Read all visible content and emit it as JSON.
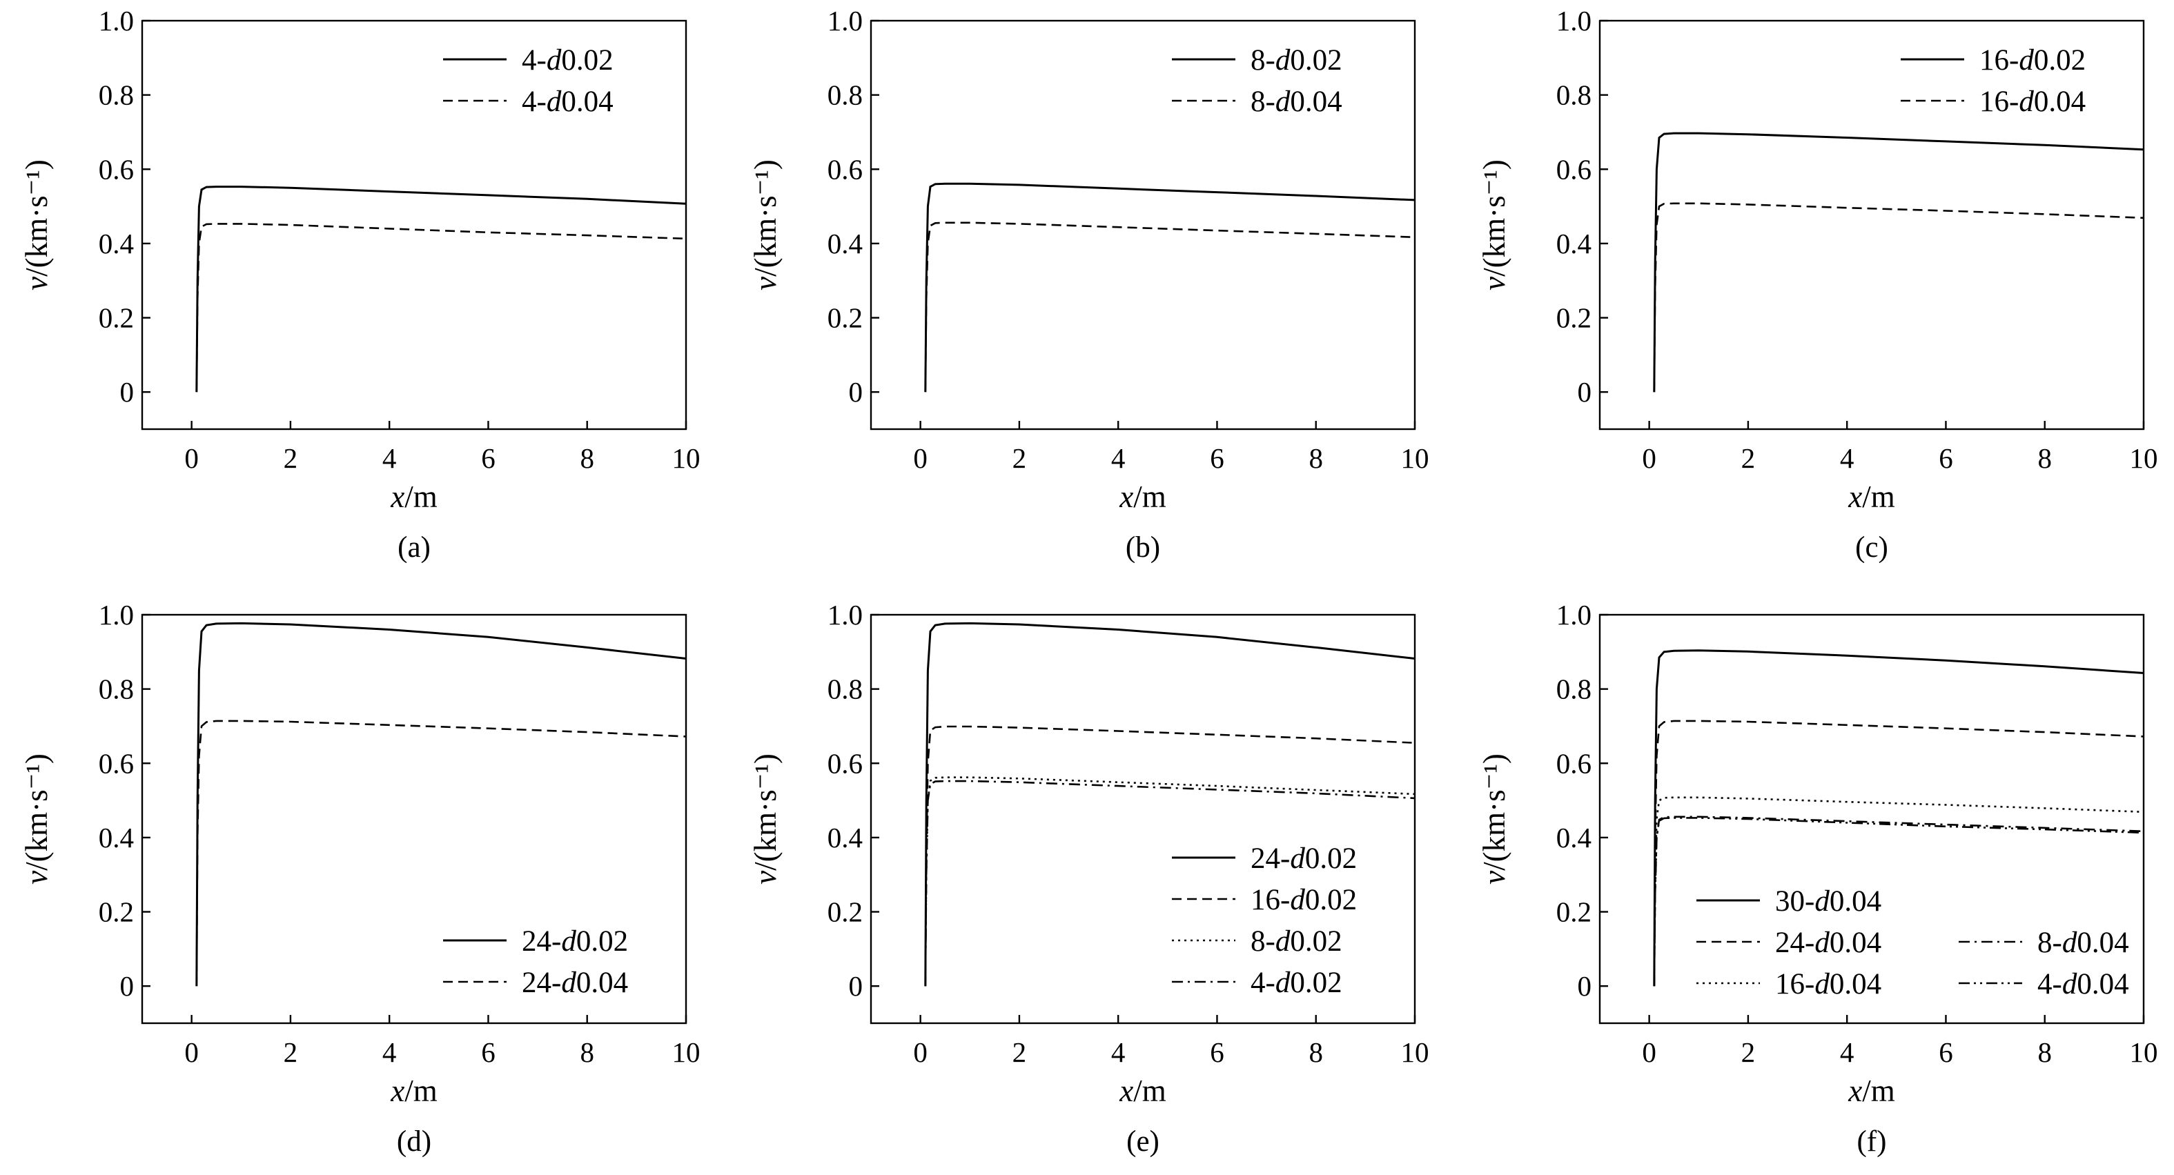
{
  "figure_style": {
    "line_color": "#000000",
    "background": "#ffffff"
  },
  "chart_data": [
    {
      "panel": "(a)",
      "type": "line",
      "xlabel": "x/m",
      "ylabel": "v/(km·s⁻¹)",
      "xlim": [
        -1,
        10
      ],
      "ylim": [
        -0.1,
        1.0
      ],
      "xticks": [
        0,
        2,
        4,
        6,
        8,
        10
      ],
      "yticks": [
        0,
        0.2,
        0.4,
        0.6,
        0.8,
        1.0
      ],
      "grid": false,
      "legend_position": "top-right",
      "series": [
        {
          "name": "4-d0.02",
          "style": "solid",
          "x": [
            0.1,
            0.12,
            0.15,
            0.2,
            0.3,
            0.5,
            1,
            2,
            4,
            6,
            8,
            10
          ],
          "y": [
            0,
            0.3,
            0.5,
            0.545,
            0.552,
            0.553,
            0.553,
            0.55,
            0.54,
            0.53,
            0.52,
            0.507
          ]
        },
        {
          "name": "4-d0.04",
          "style": "dashed",
          "x": [
            0.1,
            0.12,
            0.15,
            0.2,
            0.3,
            0.5,
            1,
            2,
            4,
            6,
            8,
            10
          ],
          "y": [
            0,
            0.25,
            0.4,
            0.445,
            0.452,
            0.453,
            0.453,
            0.45,
            0.44,
            0.43,
            0.422,
            0.413
          ]
        }
      ]
    },
    {
      "panel": "(b)",
      "type": "line",
      "xlabel": "x/m",
      "ylabel": "v/(km·s⁻¹)",
      "xlim": [
        -1,
        10
      ],
      "ylim": [
        -0.1,
        1.0
      ],
      "xticks": [
        0,
        2,
        4,
        6,
        8,
        10
      ],
      "yticks": [
        0,
        0.2,
        0.4,
        0.6,
        0.8,
        1.0
      ],
      "grid": false,
      "legend_position": "top-right",
      "series": [
        {
          "name": "8-d0.02",
          "style": "solid",
          "x": [
            0.1,
            0.12,
            0.15,
            0.2,
            0.3,
            0.5,
            1,
            2,
            4,
            6,
            8,
            10
          ],
          "y": [
            0,
            0.3,
            0.5,
            0.553,
            0.56,
            0.561,
            0.561,
            0.558,
            0.548,
            0.538,
            0.528,
            0.517
          ]
        },
        {
          "name": "8-d0.04",
          "style": "dashed",
          "x": [
            0.1,
            0.12,
            0.15,
            0.2,
            0.3,
            0.5,
            1,
            2,
            4,
            6,
            8,
            10
          ],
          "y": [
            0,
            0.25,
            0.4,
            0.448,
            0.455,
            0.456,
            0.456,
            0.453,
            0.444,
            0.435,
            0.426,
            0.417
          ]
        }
      ]
    },
    {
      "panel": "(c)",
      "type": "line",
      "xlabel": "x/m",
      "ylabel": "v/(km·s⁻¹)",
      "xlim": [
        -1,
        10
      ],
      "ylim": [
        -0.1,
        1.0
      ],
      "xticks": [
        0,
        2,
        4,
        6,
        8,
        10
      ],
      "yticks": [
        0,
        0.2,
        0.4,
        0.6,
        0.8,
        1.0
      ],
      "grid": false,
      "legend_position": "top-right",
      "series": [
        {
          "name": "16-d0.02",
          "style": "solid",
          "x": [
            0.1,
            0.12,
            0.15,
            0.2,
            0.3,
            0.5,
            1,
            2,
            4,
            6,
            8,
            10
          ],
          "y": [
            0,
            0.35,
            0.6,
            0.685,
            0.695,
            0.697,
            0.697,
            0.694,
            0.685,
            0.675,
            0.665,
            0.653
          ]
        },
        {
          "name": "16-d0.04",
          "style": "dashed",
          "x": [
            0.1,
            0.12,
            0.15,
            0.2,
            0.3,
            0.5,
            1,
            2,
            4,
            6,
            8,
            10
          ],
          "y": [
            0,
            0.28,
            0.45,
            0.5,
            0.507,
            0.508,
            0.508,
            0.505,
            0.496,
            0.488,
            0.479,
            0.469
          ]
        }
      ]
    },
    {
      "panel": "(d)",
      "type": "line",
      "xlabel": "x/m",
      "ylabel": "v/(km·s⁻¹)",
      "xlim": [
        -1,
        10
      ],
      "ylim": [
        -0.1,
        1.0
      ],
      "xticks": [
        0,
        2,
        4,
        6,
        8,
        10
      ],
      "yticks": [
        0,
        0.2,
        0.4,
        0.6,
        0.8,
        1.0
      ],
      "grid": false,
      "legend_position": "bottom-right",
      "series": [
        {
          "name": "24-d0.02",
          "style": "solid",
          "x": [
            0.1,
            0.12,
            0.15,
            0.2,
            0.3,
            0.5,
            1,
            2,
            4,
            6,
            8,
            10
          ],
          "y": [
            0,
            0.5,
            0.85,
            0.955,
            0.972,
            0.976,
            0.977,
            0.974,
            0.96,
            0.94,
            0.912,
            0.882
          ]
        },
        {
          "name": "24-d0.04",
          "style": "dashed",
          "x": [
            0.1,
            0.12,
            0.15,
            0.2,
            0.3,
            0.5,
            1,
            2,
            4,
            6,
            8,
            10
          ],
          "y": [
            0,
            0.4,
            0.62,
            0.7,
            0.711,
            0.714,
            0.714,
            0.712,
            0.703,
            0.694,
            0.684,
            0.672
          ]
        }
      ]
    },
    {
      "panel": "(e)",
      "type": "line",
      "xlabel": "x/m",
      "ylabel": "v/(km·s⁻¹)",
      "xlim": [
        -1,
        10
      ],
      "ylim": [
        -0.1,
        1.0
      ],
      "xticks": [
        0,
        2,
        4,
        6,
        8,
        10
      ],
      "yticks": [
        0,
        0.2,
        0.4,
        0.6,
        0.8,
        1.0
      ],
      "grid": false,
      "legend_position": "bottom-right",
      "series": [
        {
          "name": "24-d0.02",
          "style": "solid",
          "x": [
            0.1,
            0.12,
            0.15,
            0.2,
            0.3,
            0.5,
            1,
            2,
            4,
            6,
            8,
            10
          ],
          "y": [
            0,
            0.5,
            0.85,
            0.955,
            0.972,
            0.976,
            0.977,
            0.974,
            0.96,
            0.94,
            0.912,
            0.882
          ]
        },
        {
          "name": "16-d0.02",
          "style": "dashed",
          "x": [
            0.1,
            0.12,
            0.15,
            0.2,
            0.3,
            0.5,
            1,
            2,
            4,
            6,
            8,
            10
          ],
          "y": [
            0,
            0.35,
            0.6,
            0.688,
            0.697,
            0.699,
            0.699,
            0.696,
            0.687,
            0.677,
            0.667,
            0.655
          ]
        },
        {
          "name": "8-d0.02",
          "style": "dotted",
          "x": [
            0.1,
            0.12,
            0.15,
            0.2,
            0.3,
            0.5,
            1,
            2,
            4,
            6,
            8,
            10
          ],
          "y": [
            0,
            0.3,
            0.5,
            0.553,
            0.561,
            0.562,
            0.562,
            0.559,
            0.549,
            0.539,
            0.528,
            0.517
          ]
        },
        {
          "name": "4-d0.02",
          "style": "dashdot",
          "x": [
            0.1,
            0.12,
            0.15,
            0.2,
            0.3,
            0.5,
            1,
            2,
            4,
            6,
            8,
            10
          ],
          "y": [
            0,
            0.3,
            0.5,
            0.544,
            0.551,
            0.552,
            0.552,
            0.549,
            0.539,
            0.529,
            0.519,
            0.506
          ]
        }
      ]
    },
    {
      "panel": "(f)",
      "type": "line",
      "xlabel": "x/m",
      "ylabel": "v/(km·s⁻¹)",
      "xlim": [
        -1,
        10
      ],
      "ylim": [
        -0.1,
        1.0
      ],
      "xticks": [
        0,
        2,
        4,
        6,
        8,
        10
      ],
      "yticks": [
        0,
        0.2,
        0.4,
        0.6,
        0.8,
        1.0
      ],
      "grid": false,
      "legend_position": "bottom-right",
      "series": [
        {
          "name": "30-d0.04",
          "style": "solid",
          "x": [
            0.1,
            0.12,
            0.15,
            0.2,
            0.3,
            0.5,
            1,
            2,
            4,
            6,
            8,
            10
          ],
          "y": [
            0,
            0.5,
            0.8,
            0.885,
            0.9,
            0.903,
            0.904,
            0.901,
            0.89,
            0.877,
            0.861,
            0.843
          ]
        },
        {
          "name": "24-d0.04",
          "style": "dashed",
          "x": [
            0.1,
            0.12,
            0.15,
            0.2,
            0.3,
            0.5,
            1,
            2,
            4,
            6,
            8,
            10
          ],
          "y": [
            0,
            0.4,
            0.62,
            0.7,
            0.711,
            0.714,
            0.714,
            0.712,
            0.703,
            0.694,
            0.684,
            0.672
          ]
        },
        {
          "name": "16-d0.04",
          "style": "dotted",
          "x": [
            0.1,
            0.12,
            0.15,
            0.2,
            0.3,
            0.5,
            1,
            2,
            4,
            6,
            8,
            10
          ],
          "y": [
            0,
            0.28,
            0.45,
            0.5,
            0.507,
            0.508,
            0.508,
            0.505,
            0.496,
            0.488,
            0.479,
            0.469
          ]
        },
        {
          "name": "8-d0.04",
          "style": "dashdot",
          "x": [
            0.1,
            0.12,
            0.15,
            0.2,
            0.3,
            0.5,
            1,
            2,
            4,
            6,
            8,
            10
          ],
          "y": [
            0,
            0.25,
            0.4,
            0.448,
            0.455,
            0.456,
            0.456,
            0.453,
            0.444,
            0.435,
            0.426,
            0.417
          ]
        },
        {
          "name": "4-d0.04",
          "style": "dashdotdot",
          "x": [
            0.1,
            0.12,
            0.15,
            0.2,
            0.3,
            0.5,
            1,
            2,
            4,
            6,
            8,
            10
          ],
          "y": [
            0,
            0.25,
            0.4,
            0.445,
            0.452,
            0.453,
            0.453,
            0.45,
            0.44,
            0.43,
            0.422,
            0.413
          ]
        }
      ]
    }
  ]
}
